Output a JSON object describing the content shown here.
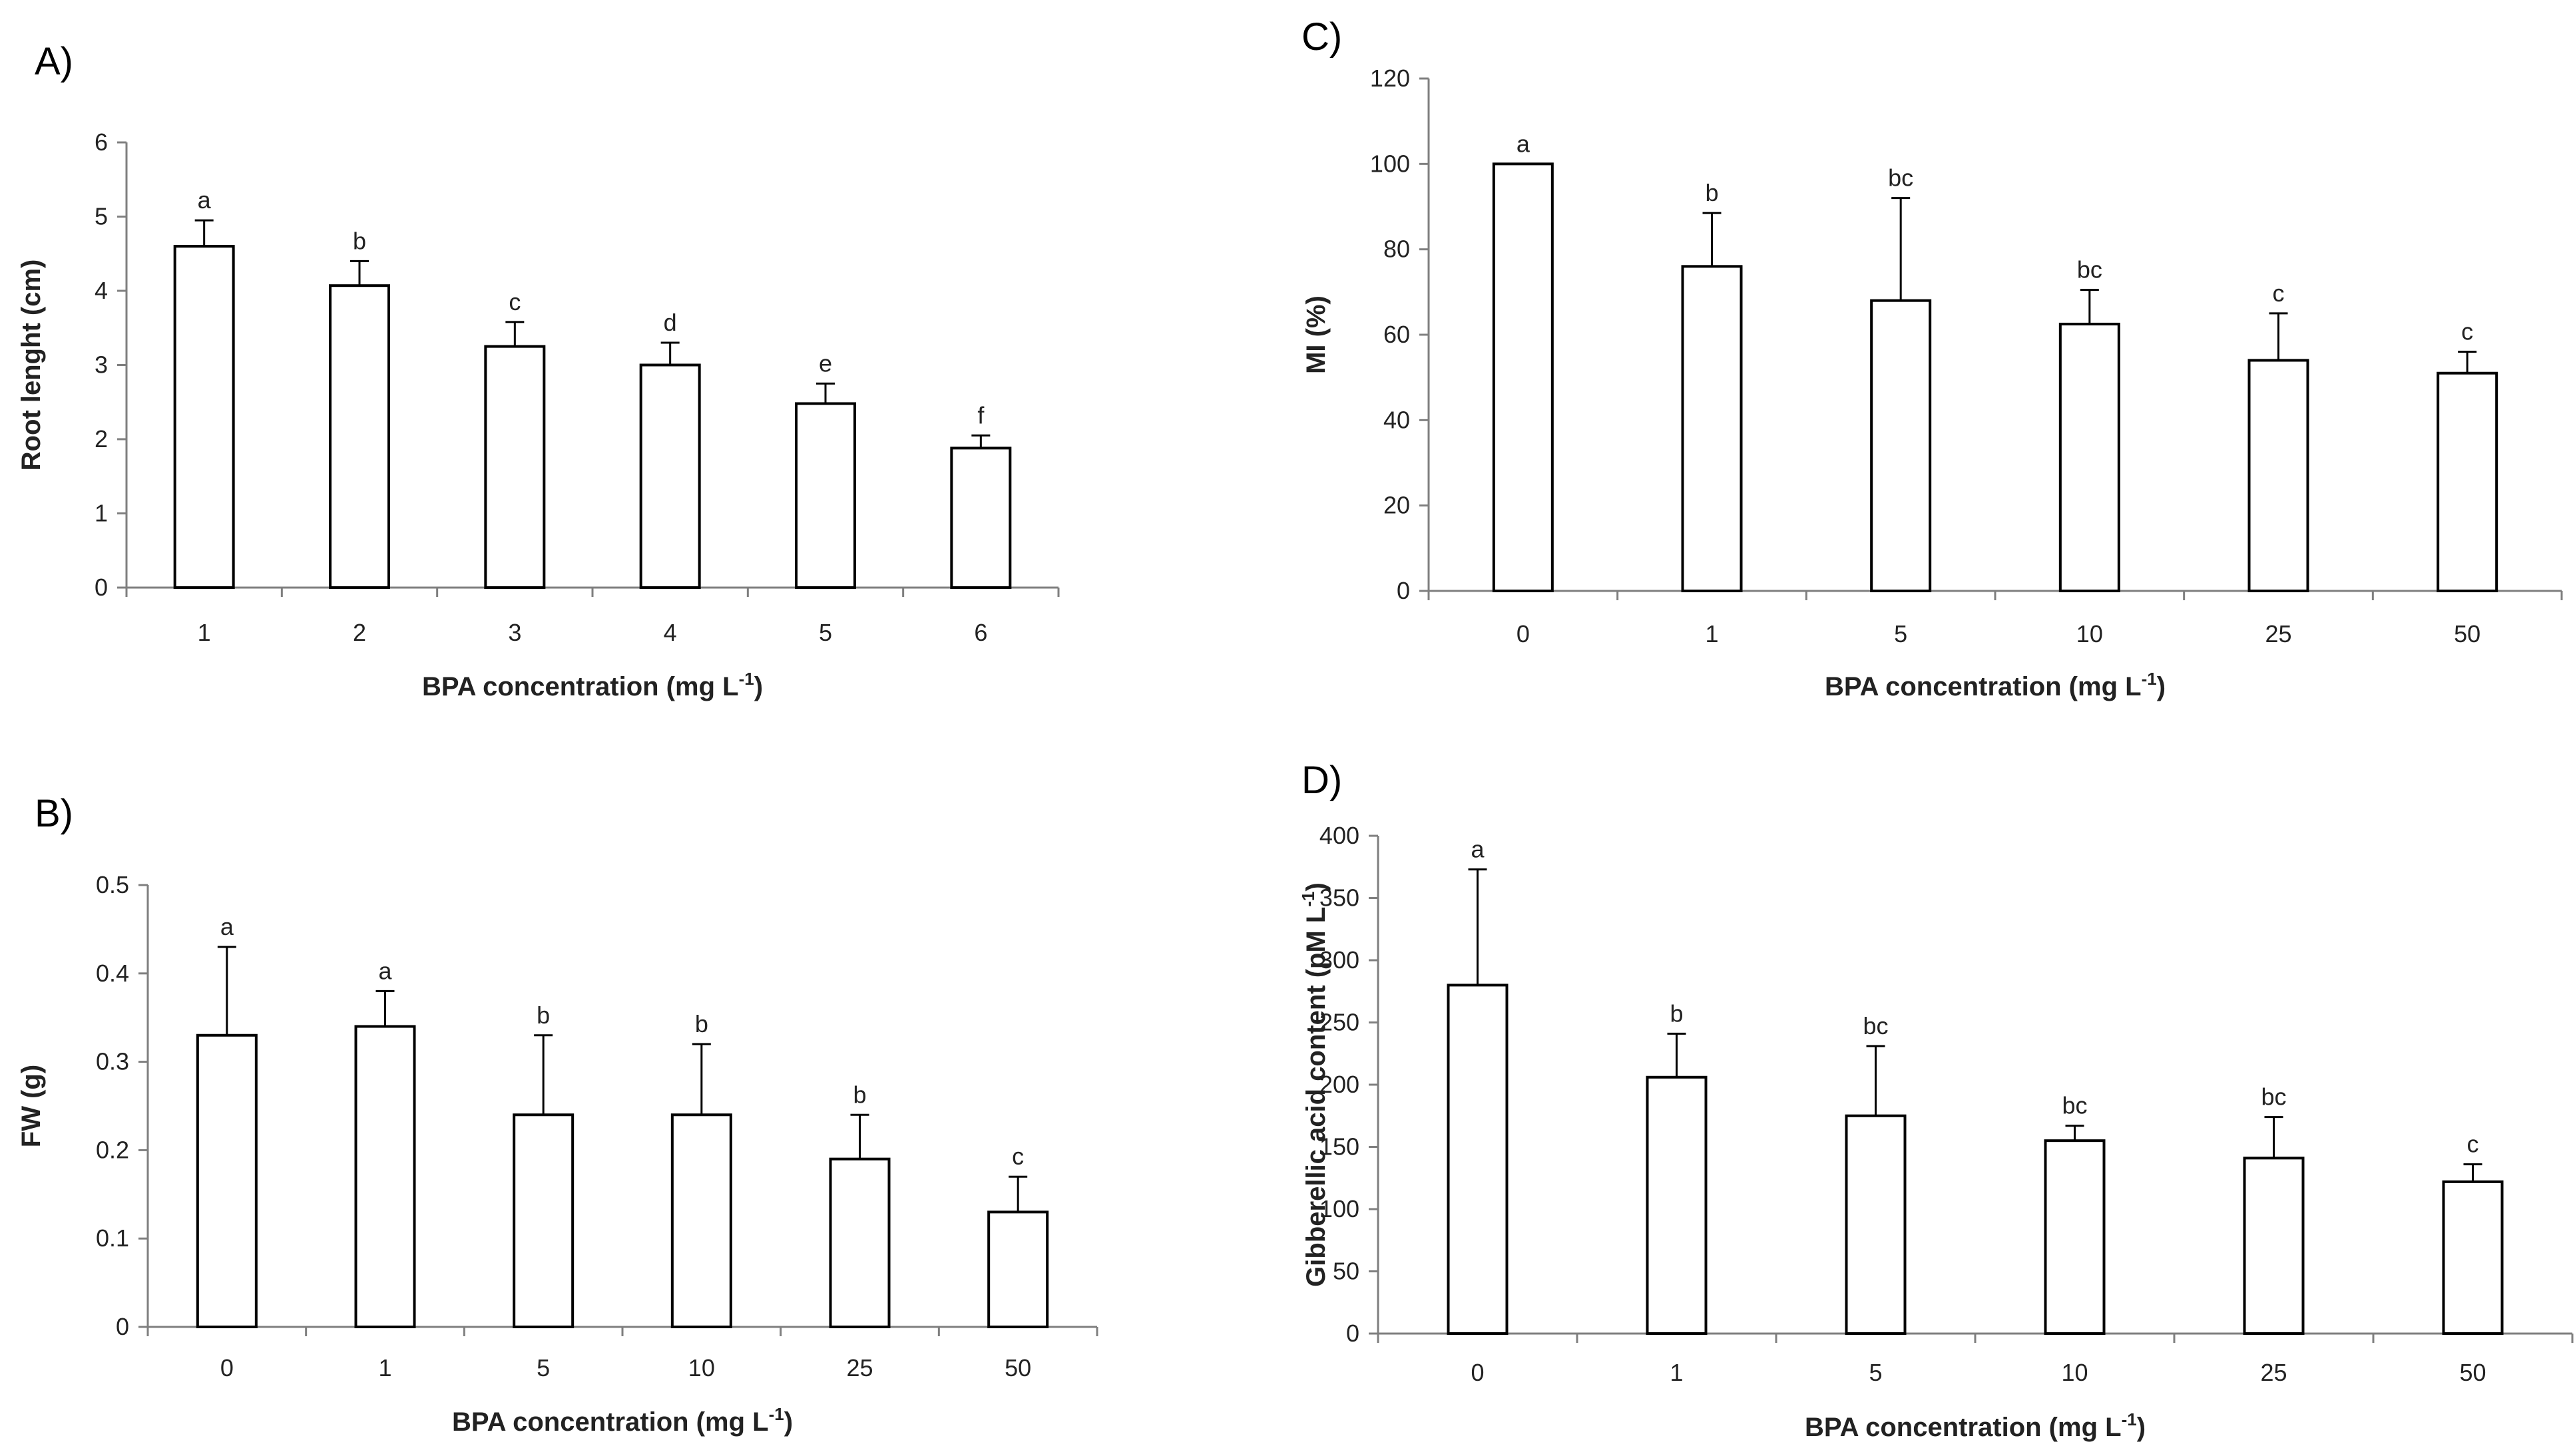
{
  "chart_data": [
    {
      "id": "A",
      "panel_label": "A)",
      "type": "bar",
      "categories": [
        "1",
        "2",
        "3",
        "4",
        "5",
        "6"
      ],
      "values": [
        4.6,
        4.07,
        3.25,
        3.0,
        2.48,
        1.88
      ],
      "errors": [
        0.35,
        0.33,
        0.33,
        0.3,
        0.27,
        0.17
      ],
      "significance": [
        "a",
        "b",
        "c",
        "d",
        "e",
        "f"
      ],
      "ylim": [
        0,
        6
      ],
      "yticks": [
        "0",
        "1",
        "2",
        "3",
        "4",
        "5",
        "6"
      ],
      "ylabel": "Root lenght (cm)",
      "xlabel_main": "BPA concentration (mg L",
      "xlabel_sup": "-1",
      "xlabel_end": ")"
    },
    {
      "id": "B",
      "panel_label": "B)",
      "type": "bar",
      "categories": [
        "0",
        "1",
        "5",
        "10",
        "25",
        "50"
      ],
      "values": [
        0.33,
        0.34,
        0.24,
        0.24,
        0.19,
        0.13
      ],
      "errors": [
        0.1,
        0.04,
        0.09,
        0.08,
        0.05,
        0.04
      ],
      "significance": [
        "a",
        "a",
        "b",
        "b",
        "b",
        "c"
      ],
      "ylim": [
        0,
        0.5
      ],
      "yticks": [
        "0",
        "0.1",
        "0.2",
        "0.3",
        "0.4",
        "0.5"
      ],
      "ylabel": "FW (g)",
      "xlabel_main": "BPA concentration (mg L",
      "xlabel_sup": "-1",
      "xlabel_end": ")"
    },
    {
      "id": "C",
      "panel_label": "C)",
      "type": "bar",
      "categories": [
        "0",
        "1",
        "5",
        "10",
        "25",
        "50"
      ],
      "values": [
        100,
        76,
        68,
        62.5,
        54,
        51
      ],
      "errors": [
        0,
        12.5,
        24,
        8,
        11,
        5
      ],
      "significance": [
        "a",
        "b",
        "bc",
        "bc",
        "c",
        "c"
      ],
      "ylim": [
        0,
        120
      ],
      "yticks": [
        "0",
        "20",
        "40",
        "60",
        "80",
        "100",
        "120"
      ],
      "ylabel": "MI (%)",
      "xlabel_main": "BPA concentration (mg L",
      "xlabel_sup": "-1",
      "xlabel_end": ")"
    },
    {
      "id": "D",
      "panel_label": "D)",
      "type": "bar",
      "categories": [
        "0",
        "1",
        "5",
        "10",
        "25",
        "50"
      ],
      "values": [
        280,
        206,
        175,
        155,
        141,
        122
      ],
      "errors": [
        93,
        35,
        56,
        12,
        33,
        14
      ],
      "significance": [
        "a",
        "b",
        "bc",
        "bc",
        "bc",
        "c"
      ],
      "ylim": [
        0,
        400
      ],
      "yticks": [
        "0",
        "50",
        "100",
        "150",
        "200",
        "250",
        "300",
        "350",
        "400"
      ],
      "ylabel_main": "Gibberellic acid content (pM L",
      "ylabel_sup": "-1",
      "ylabel_end": ")",
      "xlabel_main": "BPA concentration (mg L",
      "xlabel_sup": "-1",
      "xlabel_end": ")"
    }
  ]
}
